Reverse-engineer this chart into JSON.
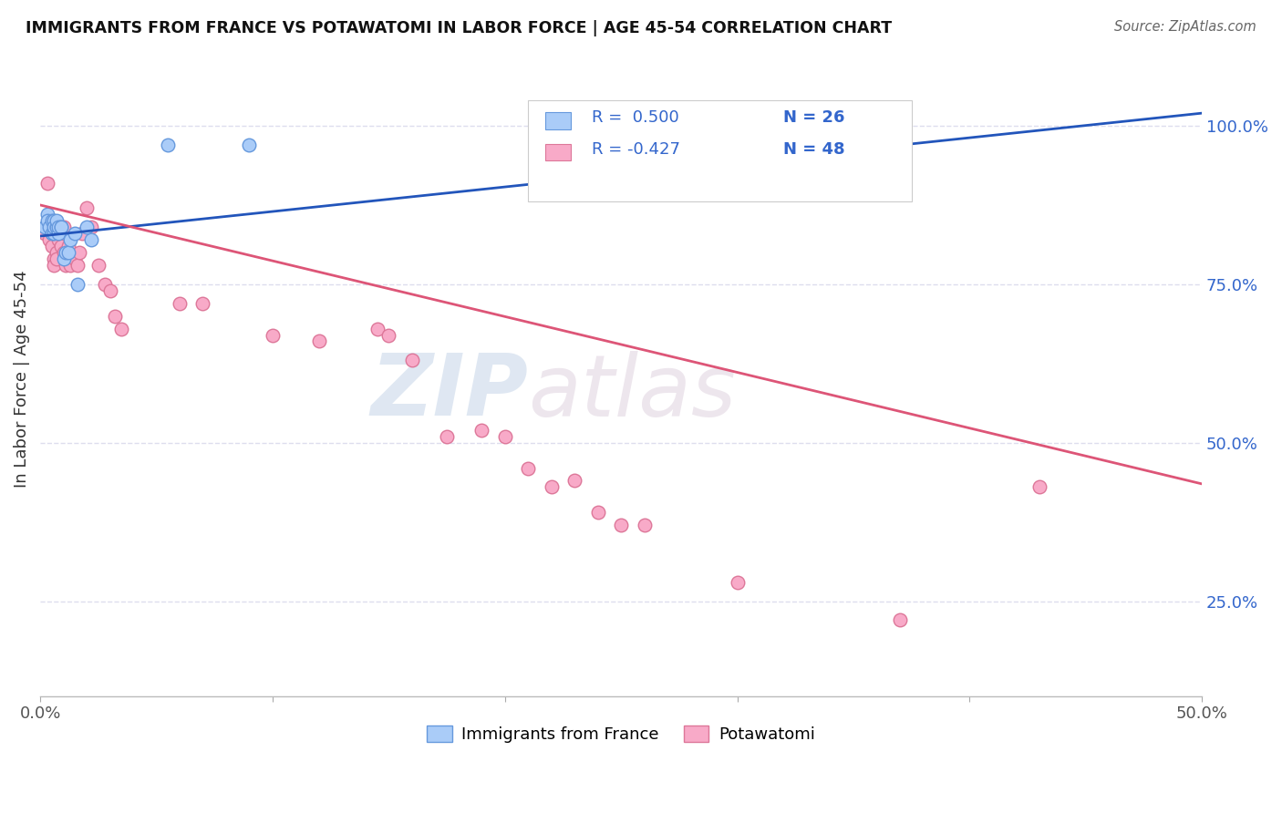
{
  "title": "IMMIGRANTS FROM FRANCE VS POTAWATOMI IN LABOR FORCE | AGE 45-54 CORRELATION CHART",
  "source": "Source: ZipAtlas.com",
  "ylabel": "In Labor Force | Age 45-54",
  "yticks_labels": [
    "100.0%",
    "75.0%",
    "50.0%",
    "25.0%"
  ],
  "ytick_positions": [
    1.0,
    0.75,
    0.5,
    0.25
  ],
  "xlim": [
    0.0,
    0.5
  ],
  "ylim": [
    0.1,
    1.1
  ],
  "legend_r1": "R =  0.500",
  "legend_n1": "N = 26",
  "legend_r2": "R = -0.427",
  "legend_n2": "N = 48",
  "france_color": "#aaccf8",
  "potawatomi_color": "#f8aac8",
  "france_edge_color": "#6699dd",
  "potawatomi_edge_color": "#dd7799",
  "france_line_color": "#2255bb",
  "potawatomi_line_color": "#dd5577",
  "france_scatter_x": [
    0.002,
    0.003,
    0.003,
    0.004,
    0.005,
    0.005,
    0.006,
    0.006,
    0.006,
    0.007,
    0.007,
    0.007,
    0.008,
    0.008,
    0.009,
    0.009,
    0.01,
    0.011,
    0.012,
    0.013,
    0.015,
    0.016,
    0.02,
    0.022,
    0.055,
    0.09
  ],
  "france_scatter_y": [
    0.84,
    0.86,
    0.85,
    0.84,
    0.83,
    0.85,
    0.83,
    0.85,
    0.84,
    0.84,
    0.84,
    0.85,
    0.83,
    0.84,
    0.84,
    0.84,
    0.79,
    0.8,
    0.8,
    0.82,
    0.83,
    0.75,
    0.84,
    0.82,
    0.97,
    0.97
  ],
  "potawatomi_scatter_x": [
    0.002,
    0.003,
    0.004,
    0.004,
    0.005,
    0.005,
    0.006,
    0.006,
    0.007,
    0.007,
    0.008,
    0.009,
    0.01,
    0.01,
    0.011,
    0.011,
    0.012,
    0.013,
    0.015,
    0.016,
    0.017,
    0.018,
    0.02,
    0.022,
    0.025,
    0.028,
    0.03,
    0.032,
    0.035,
    0.06,
    0.07,
    0.1,
    0.12,
    0.145,
    0.15,
    0.16,
    0.175,
    0.19,
    0.2,
    0.21,
    0.22,
    0.23,
    0.24,
    0.25,
    0.26,
    0.3,
    0.37,
    0.43
  ],
  "potawatomi_scatter_y": [
    0.83,
    0.91,
    0.84,
    0.82,
    0.83,
    0.81,
    0.79,
    0.78,
    0.8,
    0.79,
    0.82,
    0.81,
    0.84,
    0.8,
    0.78,
    0.8,
    0.81,
    0.78,
    0.79,
    0.78,
    0.8,
    0.83,
    0.87,
    0.84,
    0.78,
    0.75,
    0.74,
    0.7,
    0.68,
    0.72,
    0.72,
    0.67,
    0.66,
    0.68,
    0.67,
    0.63,
    0.51,
    0.52,
    0.51,
    0.46,
    0.43,
    0.44,
    0.39,
    0.37,
    0.37,
    0.28,
    0.22,
    0.43
  ],
  "france_line_x": [
    0.0,
    0.5
  ],
  "france_line_y": [
    0.826,
    1.02
  ],
  "potawatomi_line_x": [
    0.0,
    0.5
  ],
  "potawatomi_line_y": [
    0.875,
    0.435
  ],
  "watermark_zip": "ZIP",
  "watermark_atlas": "atlas",
  "background_color": "#ffffff",
  "grid_color": "#ddddee",
  "title_color": "#111111",
  "right_ytick_color": "#3366cc",
  "legend_text_color": "#3366cc"
}
